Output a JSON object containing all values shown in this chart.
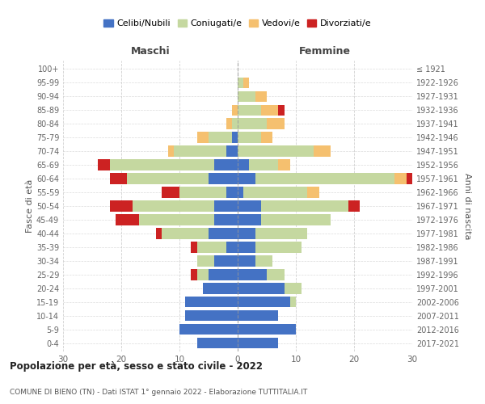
{
  "age_groups": [
    "0-4",
    "5-9",
    "10-14",
    "15-19",
    "20-24",
    "25-29",
    "30-34",
    "35-39",
    "40-44",
    "45-49",
    "50-54",
    "55-59",
    "60-64",
    "65-69",
    "70-74",
    "75-79",
    "80-84",
    "85-89",
    "90-94",
    "95-99",
    "100+"
  ],
  "birth_years": [
    "2017-2021",
    "2012-2016",
    "2007-2011",
    "2002-2006",
    "1997-2001",
    "1992-1996",
    "1987-1991",
    "1982-1986",
    "1977-1981",
    "1972-1976",
    "1967-1971",
    "1962-1966",
    "1957-1961",
    "1952-1956",
    "1947-1951",
    "1942-1946",
    "1937-1941",
    "1932-1936",
    "1927-1931",
    "1922-1926",
    "≤ 1921"
  ],
  "maschi_celibi": [
    7,
    10,
    9,
    9,
    6,
    5,
    4,
    2,
    5,
    4,
    4,
    2,
    5,
    4,
    2,
    1,
    0,
    0,
    0,
    0,
    0
  ],
  "maschi_coniugati": [
    0,
    0,
    0,
    0,
    0,
    2,
    3,
    5,
    8,
    13,
    14,
    8,
    14,
    18,
    9,
    4,
    1,
    0,
    0,
    0,
    0
  ],
  "maschi_vedovi": [
    0,
    0,
    0,
    0,
    0,
    0,
    0,
    0,
    0,
    0,
    0,
    0,
    0,
    0,
    1,
    2,
    1,
    1,
    0,
    0,
    0
  ],
  "maschi_divorziati": [
    0,
    0,
    0,
    0,
    0,
    1,
    0,
    1,
    1,
    4,
    4,
    3,
    3,
    2,
    0,
    0,
    0,
    0,
    0,
    0,
    0
  ],
  "femmine_celibi": [
    7,
    10,
    7,
    9,
    8,
    5,
    3,
    3,
    3,
    4,
    4,
    1,
    3,
    2,
    0,
    0,
    0,
    0,
    0,
    0,
    0
  ],
  "femmine_coniugati": [
    0,
    0,
    0,
    1,
    3,
    3,
    3,
    8,
    9,
    12,
    15,
    11,
    24,
    5,
    13,
    4,
    5,
    4,
    3,
    1,
    0
  ],
  "femmine_vedovi": [
    0,
    0,
    0,
    0,
    0,
    0,
    0,
    0,
    0,
    0,
    0,
    2,
    2,
    2,
    3,
    2,
    3,
    3,
    2,
    1,
    0
  ],
  "femmine_divorziati": [
    0,
    0,
    0,
    0,
    0,
    0,
    0,
    0,
    0,
    0,
    2,
    0,
    1,
    0,
    0,
    0,
    0,
    1,
    0,
    0,
    0
  ],
  "color_celibi": "#4472c4",
  "color_coniugati": "#c5d8a0",
  "color_vedovi": "#f5c06f",
  "color_divorziati": "#cc2222",
  "title1": "Popolazione per età, sesso e stato civile - 2022",
  "title2": "COMUNE DI BIENO (TN) - Dati ISTAT 1° gennaio 2022 - Elaborazione TUTTITALIA.IT",
  "xlabel_left": "Maschi",
  "xlabel_right": "Femmine",
  "ylabel_left": "Fasce di età",
  "ylabel_right": "Anni di nascita",
  "xlim": 30,
  "bg_color": "#ffffff",
  "grid_color": "#cccccc"
}
